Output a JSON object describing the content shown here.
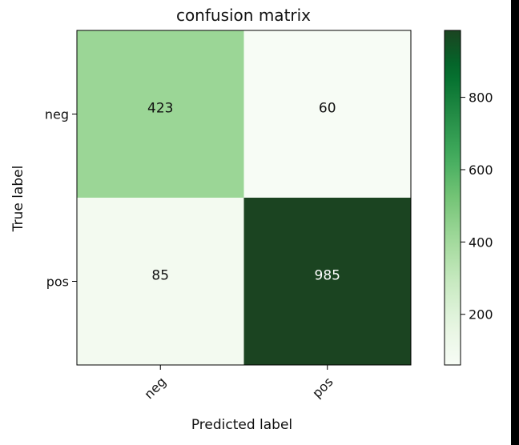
{
  "chart_data": {
    "type": "heatmap",
    "title": "confusion matrix",
    "xlabel": "Predicted label",
    "ylabel": "True label",
    "x_categories": [
      "neg",
      "pos"
    ],
    "y_categories": [
      "neg",
      "pos"
    ],
    "values": [
      [
        423,
        60
      ],
      [
        85,
        985
      ]
    ],
    "colormap": "Greens",
    "color_range": [
      60,
      985
    ],
    "colorbar_ticks": [
      200,
      400,
      600,
      800
    ],
    "colorbar_tick_labels": [
      "200",
      "400",
      "600",
      "800"
    ],
    "grid": false
  }
}
